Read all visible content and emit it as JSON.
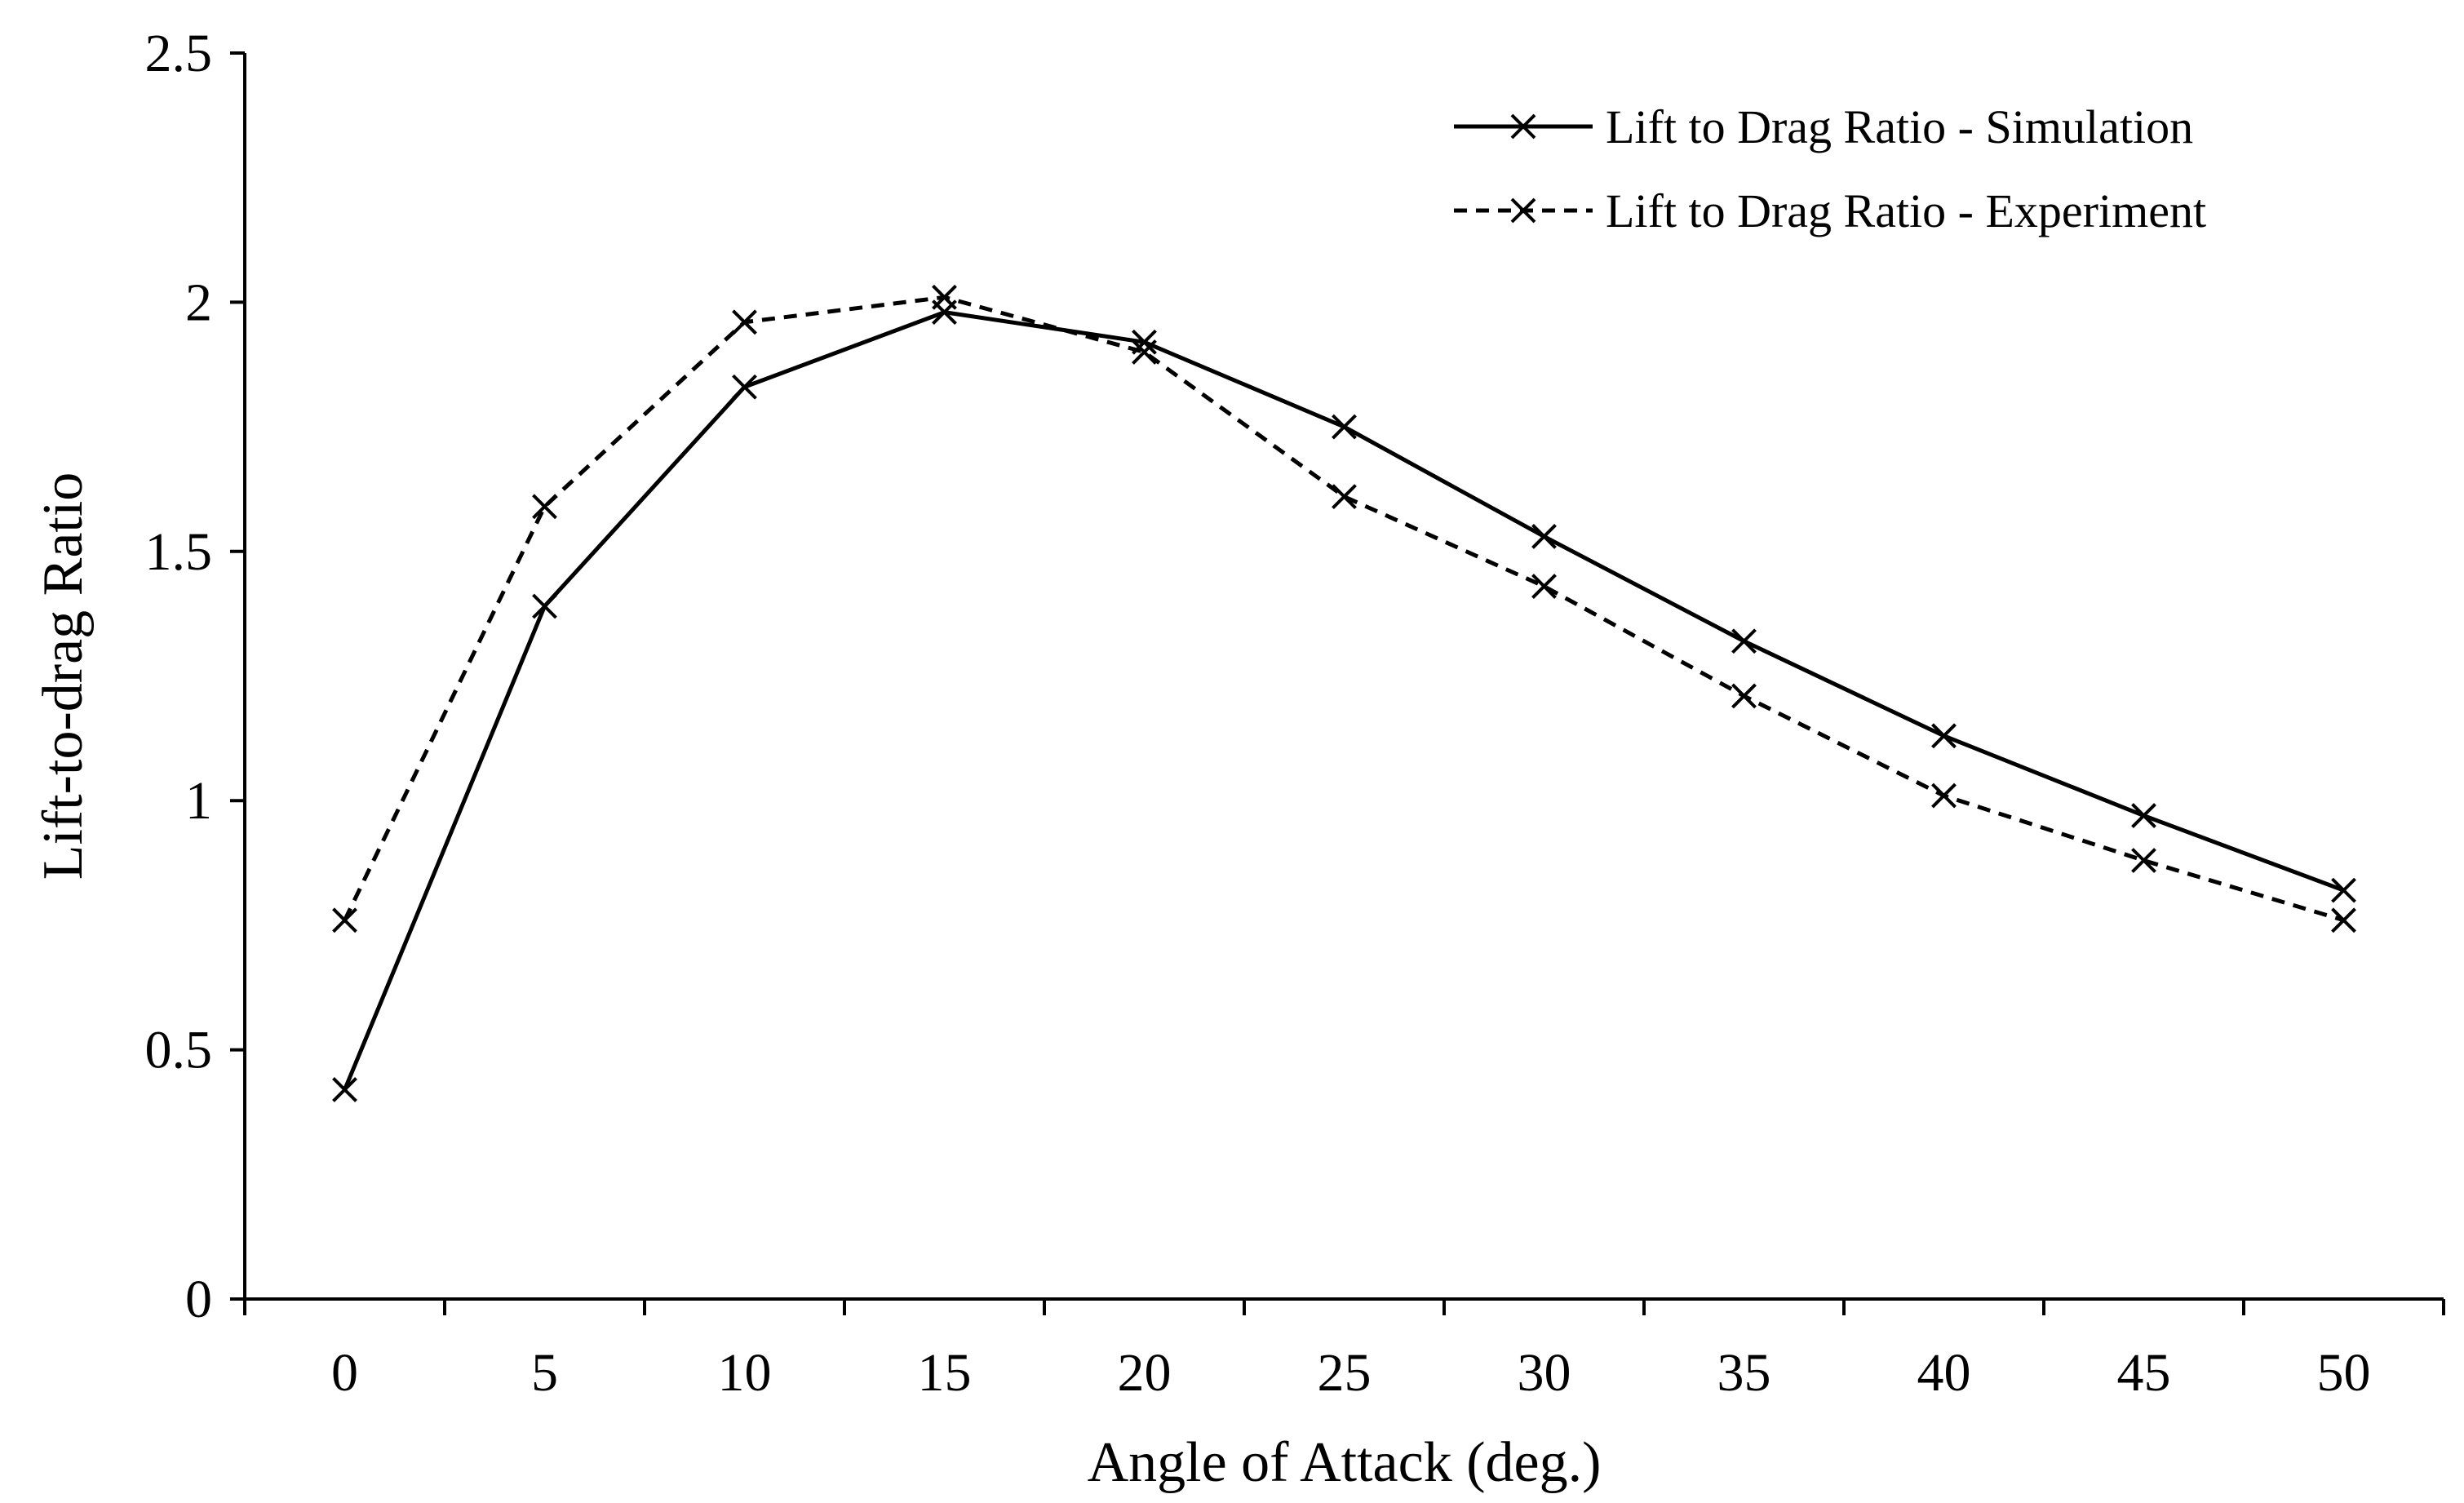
{
  "chart_data": {
    "type": "line",
    "title": "",
    "xlabel": "Angle of Attack (deg.)",
    "ylabel": "Lift-to-drag Ratio",
    "x": [
      0,
      5,
      10,
      15,
      20,
      25,
      30,
      35,
      40,
      45,
      50
    ],
    "xtick_labels": [
      "0",
      "5",
      "10",
      "15",
      "20",
      "25",
      "30",
      "35",
      "40",
      "45",
      "50"
    ],
    "ytick_values": [
      0,
      0.5,
      1,
      1.5,
      2,
      2.5
    ],
    "ytick_labels": [
      "0",
      "0.5",
      "1",
      "1.5",
      "2",
      "2.5"
    ],
    "ylim": [
      0,
      2.5
    ],
    "grid": false,
    "legend_position": "top-right",
    "series": [
      {
        "name": "Lift to Drag Ratio - Simulation",
        "line_style": "solid",
        "marker": "x",
        "color": "#000000",
        "values": [
          0.42,
          1.39,
          1.83,
          1.98,
          1.92,
          1.75,
          1.53,
          1.32,
          1.13,
          0.97,
          0.82
        ]
      },
      {
        "name": "Lift to Drag Ratio - Experiment",
        "line_style": "dashed",
        "marker": "x",
        "color": "#000000",
        "values": [
          0.76,
          1.59,
          1.96,
          2.01,
          1.9,
          1.61,
          1.43,
          1.21,
          1.01,
          0.88,
          0.76
        ]
      }
    ]
  }
}
